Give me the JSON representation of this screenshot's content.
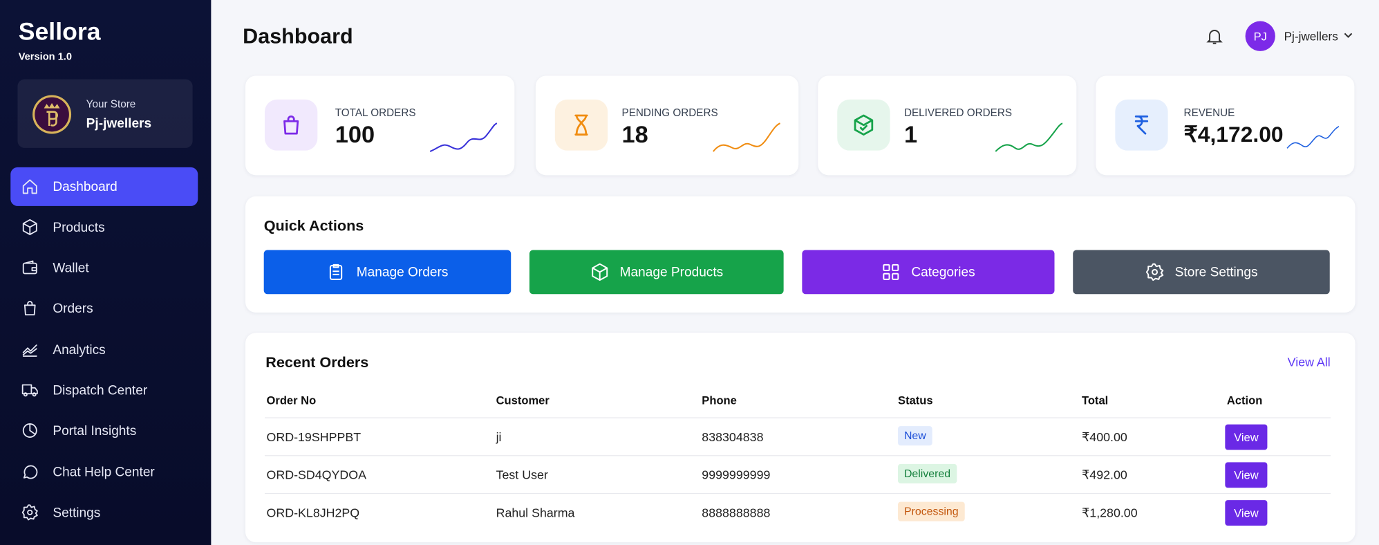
{
  "sidebar": {
    "brand": "Sellora",
    "version": "Version 1.0",
    "store_label": "Your Store",
    "store_name": "Pj-jwellers",
    "nav": [
      "Dashboard",
      "Products",
      "Wallet",
      "Orders",
      "Analytics",
      "Dispatch Center",
      "Portal Insights",
      "Chat Help Center",
      "Settings"
    ]
  },
  "header": {
    "title": "Dashboard",
    "user_initials": "PJ",
    "user_name": "Pj-jwellers"
  },
  "stats": [
    {
      "label": "TOTAL ORDERS",
      "value": "100"
    },
    {
      "label": "PENDING ORDERS",
      "value": "18"
    },
    {
      "label": "DELIVERED ORDERS",
      "value": "1"
    },
    {
      "label": "REVENUE",
      "value": "₹4,172.00"
    }
  ],
  "quick_actions": {
    "title": "Quick Actions",
    "buttons": [
      "Manage Orders",
      "Manage Products",
      "Categories",
      "Store Settings"
    ]
  },
  "recent_orders": {
    "title": "Recent Orders",
    "view_all": "View All",
    "columns": [
      "Order No",
      "Customer",
      "Phone",
      "Status",
      "Total",
      "Action"
    ],
    "rows": [
      [
        "ORD-19SHPPBT",
        "ji",
        "838304838",
        "New",
        "₹400.00",
        "View"
      ],
      [
        "ORD-SD4QYDOA",
        "Test User",
        "9999999999",
        "Delivered",
        "₹492.00",
        "View"
      ],
      [
        "ORD-KL8JH2PQ",
        "Rahul Sharma",
        "8888888888",
        "Processing",
        "₹1,280.00",
        "View"
      ]
    ]
  }
}
